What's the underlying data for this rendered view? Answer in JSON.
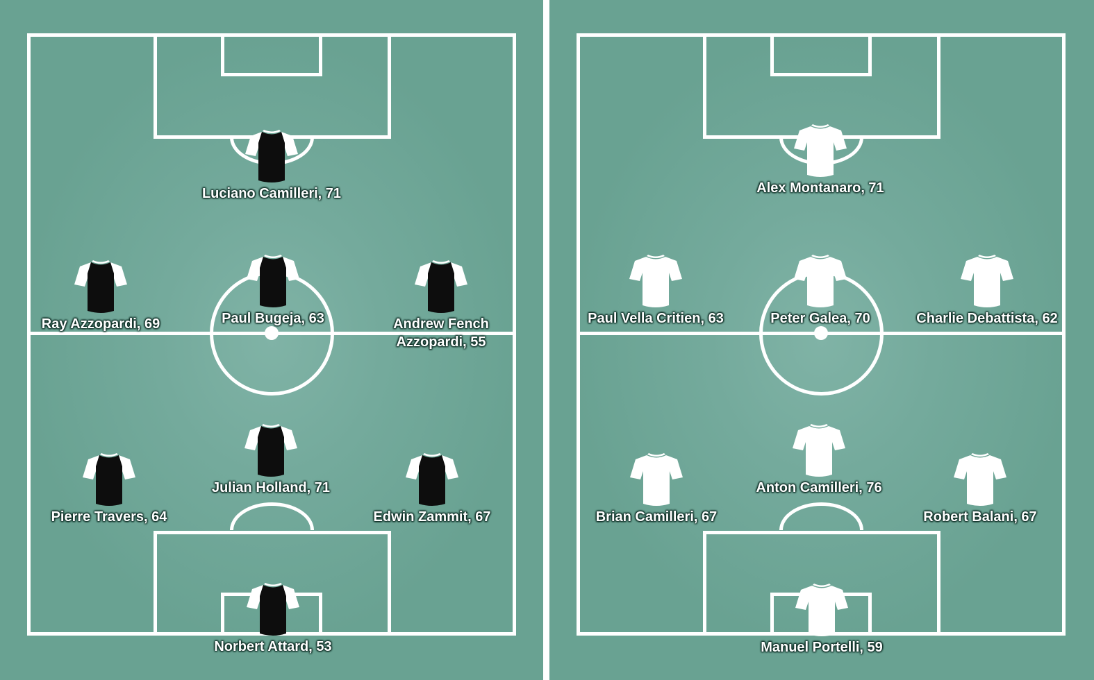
{
  "teams": [
    {
      "kit": {
        "body": "#0d0d0d",
        "sleeves": "#ffffff",
        "collar": "#ffffff"
      },
      "players": [
        {
          "name": "Luciano Camilleri, 71"
        },
        {
          "name": "Ray Azzopardi, 69"
        },
        {
          "name": "Paul Bugeja, 63"
        },
        {
          "name": "Andrew Fench\nAzzopardi, 55"
        },
        {
          "name": "Julian Holland, 71"
        },
        {
          "name": "Pierre Travers, 64"
        },
        {
          "name": "Edwin Zammit, 67"
        },
        {
          "name": "Norbert Attard, 53"
        }
      ]
    },
    {
      "kit": {
        "body": "#ffffff",
        "sleeves": "#ffffff",
        "collar": "#ffffff"
      },
      "players": [
        {
          "name": "Alex Montanaro, 71"
        },
        {
          "name": "Paul Vella Critien, 63"
        },
        {
          "name": "Peter Galea, 70"
        },
        {
          "name": "Charlie Debattista, 62"
        },
        {
          "name": "Anton Camilleri, 76"
        },
        {
          "name": "Brian Camilleri, 67"
        },
        {
          "name": "Robert Balani, 67"
        },
        {
          "name": "Manuel Portelli, 59"
        }
      ]
    }
  ]
}
